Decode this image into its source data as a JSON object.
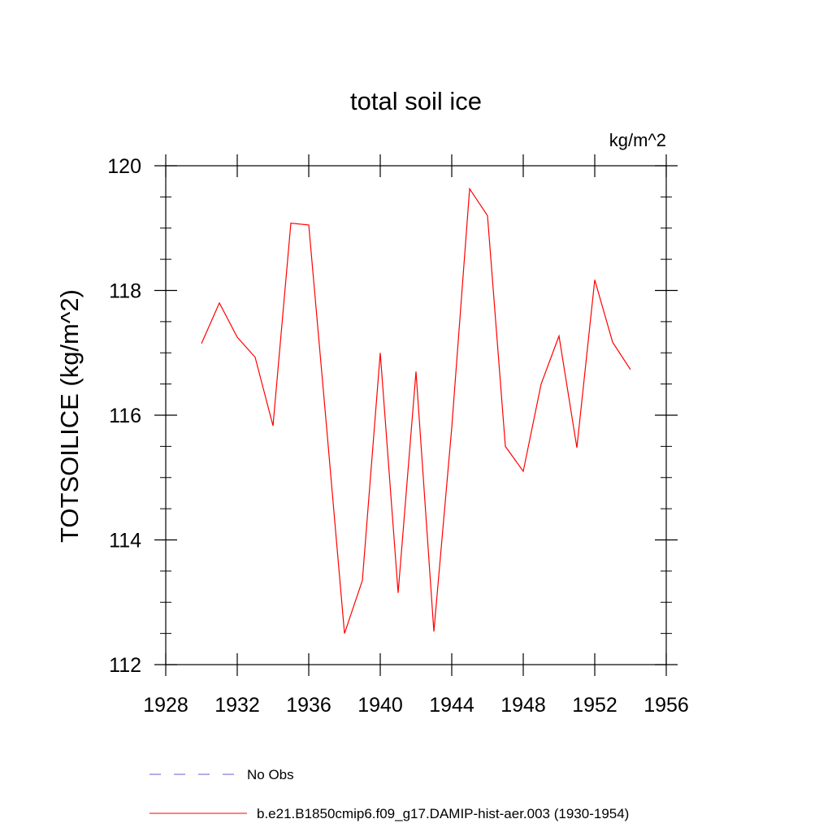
{
  "chart_data": {
    "type": "line",
    "title": "total soil ice",
    "units_label": "kg/m^2",
    "ylabel": "TOTSOILICE  (kg/m^2)",
    "xlabel": "",
    "xlim": [
      1928,
      1956
    ],
    "ylim": [
      112,
      120
    ],
    "x_ticks": [
      1928,
      1932,
      1936,
      1940,
      1944,
      1948,
      1952,
      1956
    ],
    "y_ticks": [
      112,
      114,
      116,
      118,
      120
    ],
    "grid": false,
    "legend_position": "bottom",
    "series": [
      {
        "name": "b.e21.B1850cmip6.f09_g17.DAMIP-hist-aer.003 (1930-1954)",
        "color": "#ff0000",
        "style": "solid",
        "x": [
          1930,
          1931,
          1932,
          1933,
          1934,
          1935,
          1936,
          1937,
          1938,
          1939,
          1940,
          1941,
          1942,
          1943,
          1944,
          1945,
          1946,
          1947,
          1948,
          1949,
          1950,
          1951,
          1952,
          1953,
          1954
        ],
        "y": [
          117.15,
          117.8,
          117.25,
          116.93,
          115.83,
          119.08,
          119.05,
          115.8,
          112.5,
          113.35,
          117.0,
          113.15,
          116.7,
          112.53,
          115.8,
          119.63,
          119.2,
          115.5,
          115.1,
          116.5,
          117.27,
          115.48,
          118.17,
          117.17,
          116.73
        ]
      }
    ],
    "legend": [
      {
        "label": "No Obs",
        "color": "#6a5acd",
        "style": "dashed"
      },
      {
        "label": "b.e21.B1850cmip6.f09_g17.DAMIP-hist-aer.003 (1930-1954)",
        "color": "#ff0000",
        "style": "solid"
      }
    ]
  }
}
